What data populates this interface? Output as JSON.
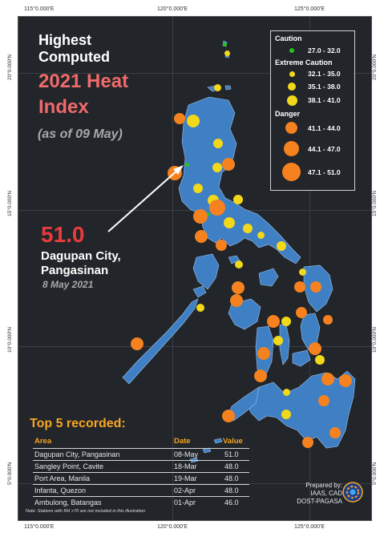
{
  "axes": {
    "x_ticks": [
      "115°0.000'E",
      "120°0.000'E",
      "125°0.000'E"
    ],
    "y_ticks": [
      "20°0.000'N",
      "15°0.000'N",
      "10°0.000'N",
      "5°0.000'N"
    ]
  },
  "title": {
    "line1": "Highest",
    "line2": "Computed",
    "line3": "2021 Heat",
    "line4": "Index",
    "subtitle": "(as of 09 May)"
  },
  "highlight": {
    "value": "51.0",
    "city_line1": "Dagupan City,",
    "city_line2": "Pangasinan",
    "date": "8 May 2021"
  },
  "legend": {
    "caution": {
      "title": "Caution",
      "items": [
        {
          "label": "27.0 - 32.0",
          "color": "#22c422"
        }
      ]
    },
    "extreme_caution": {
      "title": "Extreme Caution",
      "items": [
        {
          "label": "32.1 - 35.0",
          "color": "#f2d81a"
        },
        {
          "label": "35.1 - 38.0",
          "color": "#f2d81a"
        },
        {
          "label": "38.1 - 41.0",
          "color": "#f2d81a"
        }
      ]
    },
    "danger": {
      "title": "Danger",
      "items": [
        {
          "label": "41.1 - 44.0",
          "color": "#f5821f"
        },
        {
          "label": "44.1 - 47.0",
          "color": "#f5821f"
        },
        {
          "label": "47.1 - 51.0",
          "color": "#f5821f"
        }
      ]
    }
  },
  "top5": {
    "title": "Top 5 recorded:",
    "headers": {
      "area": "Area",
      "date": "Date",
      "value": "Value"
    },
    "rows": [
      {
        "area": "Dagupan City, Pangasinan",
        "date": "08-May",
        "value": "51.0"
      },
      {
        "area": "Sangley Point, Cavite",
        "date": "18-Mar",
        "value": "48.0"
      },
      {
        "area": "Port Area, Manila",
        "date": "19-Mar",
        "value": "48.0"
      },
      {
        "area": "Infanta, Quezon",
        "date": "02-Apr",
        "value": "48.0"
      },
      {
        "area": "Ambulong, Batangas",
        "date": "01-Apr",
        "value": "46.0"
      }
    ]
  },
  "credits": {
    "line1": "Prepared by:",
    "line2": "IAAS, CAD",
    "line3": "DOST-PAGASA"
  },
  "note": "Note: Stations with RH >70 are not included in this illustration",
  "colors": {
    "background": "#22252a",
    "land": "#3f7fc4",
    "caution": "#22c422",
    "extreme_caution": "#f2d81a",
    "danger": "#f5821f",
    "accent_red": "#e83b3b",
    "accent_orange": "#f5a623"
  },
  "stations": [
    {
      "category": "caution",
      "range": "27.0 - 32.0"
    },
    {
      "category": "caution",
      "range": "27.0 - 32.0"
    },
    {
      "category": "caution",
      "range": "27.0 - 32.0"
    },
    {
      "category": "extreme_caution",
      "range": "32.1 - 35.0"
    },
    {
      "category": "extreme_caution",
      "range": "35.1 - 38.0"
    },
    {
      "category": "extreme_caution",
      "range": "38.1 - 41.0"
    },
    {
      "category": "danger",
      "range": "41.1 - 44.0"
    },
    {
      "category": "danger",
      "range": "44.1 - 47.0"
    },
    {
      "category": "danger",
      "range": "47.1 - 51.0"
    }
  ]
}
